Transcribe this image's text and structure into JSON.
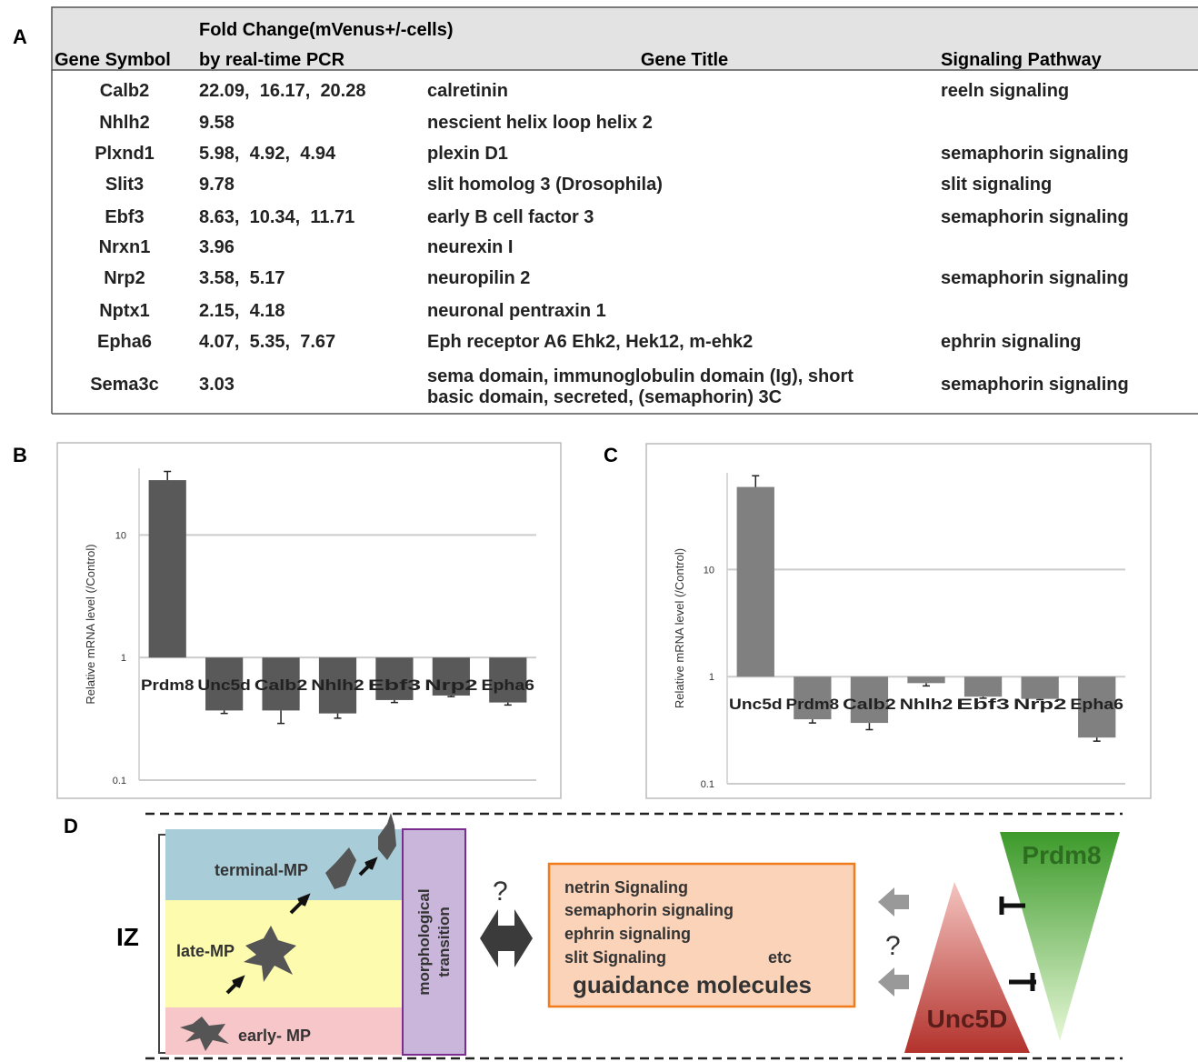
{
  "panels": [
    "A",
    "B",
    "C",
    "D"
  ],
  "table": {
    "header": {
      "symbol": "Gene Symbol",
      "fold_1": "Fold Change(mVenus+/-cells)",
      "fold_2": "by real-time PCR",
      "title": "Gene Title",
      "pathway": "Signaling Pathway"
    },
    "rows": [
      {
        "symbol": "Calb2",
        "fold": "22.09,  16.17,  20.28",
        "title": "calretinin",
        "pathway": "reeln signaling"
      },
      {
        "symbol": "Nhlh2",
        "fold": "9.58",
        "title": "nescient helix loop helix 2"
      },
      {
        "symbol": "Plxnd1",
        "fold": "5.98,  4.92,  4.94",
        "title": "plexin D1",
        "pathway": "semaphorin signaling"
      },
      {
        "symbol": "Slit3",
        "fold": "9.78",
        "title": "slit homolog 3 (Drosophila)",
        "pathway": "slit signaling"
      },
      {
        "symbol": "Ebf3",
        "fold": "8.63,  10.34,  11.71",
        "title": "early B cell factor 3",
        "pathway": "semaphorin signaling"
      },
      {
        "symbol": "Nrxn1",
        "fold": "3.96",
        "title": "neurexin I"
      },
      {
        "symbol": "Nrp2",
        "fold": "3.58,  5.17",
        "title": "neuropilin 2",
        "pathway": "semaphorin signaling"
      },
      {
        "symbol": "Nptx1",
        "fold": "2.15,  4.18",
        "title": "neuronal pentraxin 1"
      },
      {
        "symbol": "Epha6",
        "fold": "4.07,  5.35,  7.67",
        "title": "Eph receptor A6 Ehk2, Hek12, m-ehk2",
        "pathway": "ephrin signaling"
      },
      {
        "symbol": "Sema3c",
        "fold": "3.03",
        "title": [
          "sema domain, immunoglobulin domain (Ig), short",
          "basic domain, secreted, (semaphorin) 3C"
        ],
        "pathway": "semaphorin signaling"
      }
    ]
  },
  "chart_data": [
    {
      "type": "bar",
      "y_label": "Relative mRNA level (/Control)",
      "log_scale": true,
      "grid": true,
      "categories": [
        "Prdm8",
        "Unc5d",
        "Calb2",
        "Nhlh2",
        "Ebf3",
        "Nrp2",
        "Epha6"
      ],
      "series": [
        {
          "color": "#595959",
          "values": [
            28,
            0.37,
            0.37,
            0.35,
            0.45,
            0.49,
            0.43
          ],
          "errors": [
            5,
            0.02,
            0.08,
            0.03,
            0.02,
            0.01,
            0.02
          ]
        }
      ],
      "ylim": [
        0.1,
        35
      ],
      "yticks": [
        0.1,
        1,
        10
      ]
    },
    {
      "type": "bar",
      "y_label": "Relative mRNA level (/Control)",
      "log_scale": true,
      "grid": true,
      "categories": [
        "Unc5d",
        "Prdm8",
        "Calb2",
        "Nhlh2",
        "Ebf3",
        "Nrp2",
        "Epha6"
      ],
      "series": [
        {
          "color": "#808080",
          "values": [
            59,
            0.4,
            0.37,
            0.87,
            0.65,
            0.62,
            0.27
          ],
          "errors": [
            16,
            0.03,
            0.05,
            0.05,
            0.02,
            0.01,
            0.02
          ]
        }
      ],
      "ylim": [
        0.1,
        80
      ],
      "yticks": [
        0.1,
        1,
        10
      ]
    }
  ],
  "diagram": {
    "zone": "IZ",
    "stages": [
      "terminal-MP",
      "late-MP",
      "early- MP"
    ],
    "transition": [
      "morphological",
      "transition"
    ],
    "question": "?",
    "signals": [
      "netrin Signaling",
      "semaphorin signaling",
      "ephrin  signaling",
      "slit Signaling"
    ],
    "etc": "etc",
    "molecules": "guaidance molecules",
    "question_2": "?",
    "prdm8": "Prdm8",
    "unc5d": "Unc5D"
  }
}
